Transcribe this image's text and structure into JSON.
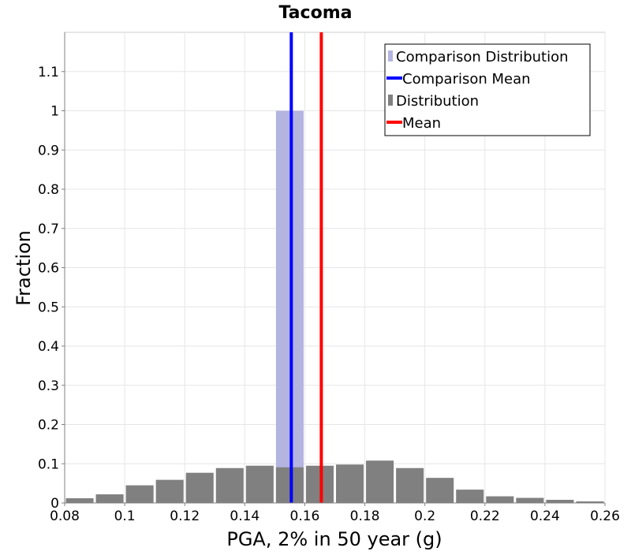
{
  "chart_data": {
    "type": "bar",
    "title": "Tacoma",
    "xlabel": "PGA, 2% in 50 year (g)",
    "ylabel": "Fraction",
    "xlim": [
      0.08,
      0.26
    ],
    "ylim": [
      0,
      1.2
    ],
    "grid": true,
    "legend_position": "top-right",
    "x_ticks": [
      0.08,
      0.1,
      0.12,
      0.14,
      0.16,
      0.18,
      0.2,
      0.22,
      0.24,
      0.26
    ],
    "x_tick_labels": [
      "0.08",
      "0.1",
      "0.12",
      "0.14",
      "0.16",
      "0.18",
      "0.2",
      "0.22",
      "0.24",
      "0.26"
    ],
    "y_ticks": [
      0,
      0.1,
      0.2,
      0.3,
      0.4,
      0.5,
      0.6,
      0.7,
      0.8,
      0.9,
      1,
      1.1
    ],
    "y_tick_labels": [
      "0",
      "0.1",
      "0.2",
      "0.3",
      "0.4",
      "0.5",
      "0.6",
      "0.7",
      "0.8",
      "0.9",
      "1",
      "1.1"
    ],
    "bin_width": 0.01,
    "series": [
      {
        "name": "Comparison Distribution",
        "kind": "bar",
        "color": "#b4b4e0",
        "bin_starts": [
          0.15
        ],
        "values": [
          1.0
        ]
      },
      {
        "name": "Comparison Mean",
        "kind": "vline",
        "color": "#0000ff",
        "x": 0.1555
      },
      {
        "name": "Distribution",
        "kind": "bar",
        "color": "#808080",
        "bin_starts": [
          0.08,
          0.09,
          0.1,
          0.11,
          0.12,
          0.13,
          0.14,
          0.15,
          0.16,
          0.17,
          0.18,
          0.19,
          0.2,
          0.21,
          0.22,
          0.23,
          0.24,
          0.25
        ],
        "values": [
          0.012,
          0.022,
          0.045,
          0.059,
          0.077,
          0.089,
          0.095,
          0.091,
          0.095,
          0.098,
          0.108,
          0.089,
          0.064,
          0.034,
          0.017,
          0.013,
          0.008,
          0.004
        ]
      },
      {
        "name": "Mean",
        "kind": "vline",
        "color": "#ff0000",
        "x": 0.1655
      }
    ]
  }
}
